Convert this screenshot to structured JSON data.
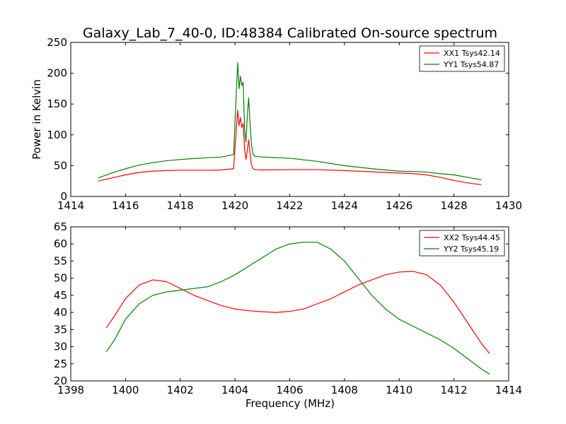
{
  "figure_title": "Galaxy_Lab_7_40-0, ID:48384 Calibrated On-source spectrum",
  "colors": {
    "xx": "#ff0000",
    "yy": "#008000"
  },
  "chart_data": [
    {
      "type": "line",
      "title": "Galaxy_Lab_7_40-0, ID:48384 Calibrated On-source spectrum",
      "xlabel": "",
      "ylabel": "Power in Kelvin",
      "xlim": [
        1414,
        1430
      ],
      "ylim": [
        0,
        250
      ],
      "xticks": [
        1414,
        1416,
        1418,
        1420,
        1422,
        1424,
        1426,
        1428,
        1430
      ],
      "yticks": [
        0,
        50,
        100,
        150,
        200,
        250
      ],
      "grid": false,
      "legend": "top-right",
      "series": [
        {
          "name": "XX1 Tsys42.14",
          "color": "#ff0000",
          "x": [
            1415.0,
            1415.5,
            1416.0,
            1416.5,
            1417.0,
            1417.5,
            1418.0,
            1418.5,
            1419.0,
            1419.5,
            1419.95,
            1420.05,
            1420.1,
            1420.15,
            1420.2,
            1420.25,
            1420.3,
            1420.35,
            1420.4,
            1420.45,
            1420.5,
            1420.55,
            1420.6,
            1420.65,
            1420.7,
            1420.8,
            1421.0,
            1422.0,
            1423.0,
            1424.0,
            1425.0,
            1426.0,
            1426.5,
            1427.0,
            1427.5,
            1428.0,
            1428.5,
            1429.0
          ],
          "values": [
            25,
            30,
            35,
            39,
            41,
            42,
            42.5,
            42.5,
            42.5,
            43,
            45,
            110,
            140,
            115,
            128,
            112,
            118,
            78,
            60,
            75,
            92,
            70,
            52,
            46,
            44,
            43.5,
            43,
            43.5,
            43.5,
            42,
            40,
            38,
            37,
            35,
            31,
            26,
            22,
            19
          ]
        },
        {
          "name": "YY1 Tsys54.87",
          "color": "#008000",
          "x": [
            1415.0,
            1415.5,
            1416.0,
            1416.5,
            1417.0,
            1417.5,
            1418.0,
            1418.5,
            1419.0,
            1419.5,
            1419.95,
            1420.05,
            1420.1,
            1420.15,
            1420.2,
            1420.25,
            1420.3,
            1420.35,
            1420.4,
            1420.45,
            1420.5,
            1420.55,
            1420.6,
            1420.65,
            1420.7,
            1420.8,
            1421.0,
            1422.0,
            1423.0,
            1424.0,
            1425.0,
            1426.0,
            1426.5,
            1427.0,
            1427.5,
            1428.0,
            1428.5,
            1429.0
          ],
          "values": [
            30,
            38,
            45,
            51,
            55,
            58,
            60,
            61.5,
            63,
            64,
            68,
            170,
            217,
            175,
            195,
            180,
            185,
            110,
            88,
            130,
            160,
            120,
            85,
            70,
            66,
            65,
            64,
            62,
            57,
            50,
            45,
            41,
            40.5,
            39.5,
            37,
            35,
            31,
            27
          ]
        }
      ]
    },
    {
      "type": "line",
      "title": "",
      "xlabel": "Frequency (MHz)",
      "ylabel": "",
      "xlim": [
        1398,
        1414
      ],
      "ylim": [
        20,
        65
      ],
      "xticks": [
        1398,
        1400,
        1402,
        1404,
        1406,
        1408,
        1410,
        1412,
        1414
      ],
      "yticks": [
        20,
        25,
        30,
        35,
        40,
        45,
        50,
        55,
        60,
        65
      ],
      "grid": false,
      "legend": "top-right",
      "series": [
        {
          "name": "XX2 Tsys44.45",
          "color": "#ff0000",
          "x": [
            1399.3,
            1399.6,
            1400.0,
            1400.5,
            1401.0,
            1401.5,
            1402.0,
            1402.5,
            1403.0,
            1403.5,
            1404.0,
            1404.5,
            1405.0,
            1405.5,
            1406.0,
            1406.5,
            1407.0,
            1407.5,
            1408.0,
            1408.5,
            1409.0,
            1409.5,
            1410.0,
            1410.5,
            1411.0,
            1411.5,
            1412.0,
            1412.5,
            1413.0,
            1413.3
          ],
          "values": [
            35.5,
            39,
            44,
            48,
            49.5,
            49,
            47,
            45,
            43.5,
            42,
            41,
            40.5,
            40.2,
            40,
            40.3,
            41,
            42.5,
            44,
            46,
            48,
            49.5,
            51,
            51.8,
            52,
            51,
            48,
            43,
            37,
            31,
            28
          ]
        },
        {
          "name": "YY2 Tsys45.19",
          "color": "#008000",
          "x": [
            1399.3,
            1399.6,
            1400.0,
            1400.5,
            1401.0,
            1401.5,
            1402.0,
            1402.5,
            1403.0,
            1403.5,
            1404.0,
            1404.5,
            1405.0,
            1405.5,
            1406.0,
            1406.5,
            1407.0,
            1407.5,
            1408.0,
            1408.5,
            1409.0,
            1409.5,
            1410.0,
            1410.5,
            1411.0,
            1411.5,
            1412.0,
            1412.5,
            1413.0,
            1413.3
          ],
          "values": [
            28.5,
            32,
            38,
            42.5,
            45,
            46,
            46.5,
            47,
            47.5,
            49,
            51,
            53.5,
            56,
            58.5,
            60,
            60.5,
            60.5,
            58.5,
            55,
            50,
            45,
            41,
            38,
            36,
            34,
            32,
            29.5,
            26.5,
            23.5,
            22
          ]
        }
      ]
    }
  ]
}
